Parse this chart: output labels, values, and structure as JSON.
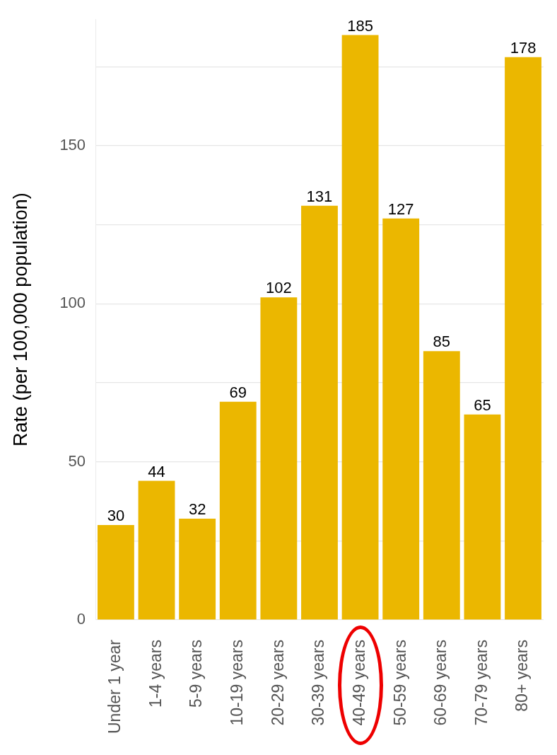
{
  "chart_data": {
    "type": "bar",
    "ylabel": "Rate (per 100,000 population)",
    "categories": [
      "Under 1 year",
      "1-4 years",
      "5-9 years",
      "10-19 years",
      "20-29 years",
      "30-39 years",
      "40-49 years",
      "50-59 years",
      "60-69 years",
      "70-79 years",
      "80+ years"
    ],
    "values": [
      30,
      44,
      32,
      69,
      102,
      131,
      185,
      127,
      85,
      65,
      178
    ],
    "color": "#ebb700",
    "ylim": [
      0,
      190
    ],
    "yticks": [
      0,
      {
        "value": 25,
        "label": null
      },
      50,
      {
        "value": 75,
        "label": null
      },
      100,
      {
        "value": 125,
        "label": null
      },
      150,
      {
        "value": 175,
        "label": null
      }
    ],
    "grid": "y",
    "data_labels": true
  }
}
